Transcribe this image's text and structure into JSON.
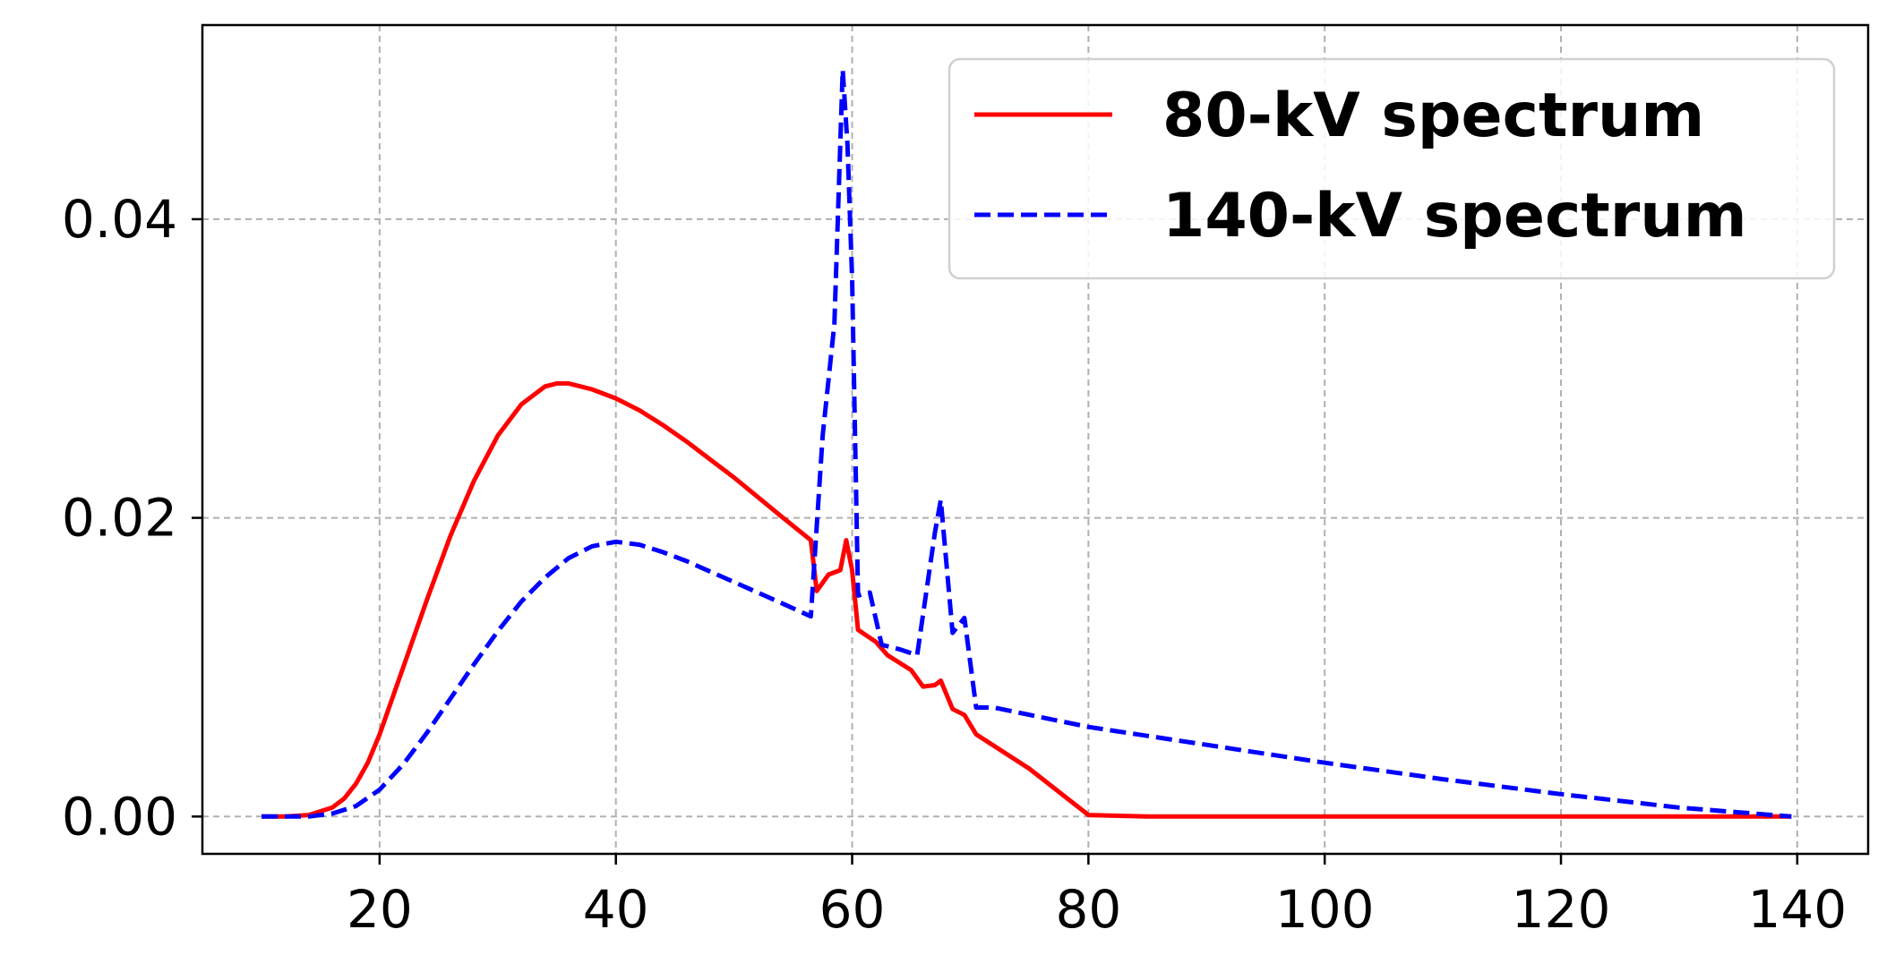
{
  "chart_data": {
    "type": "line",
    "title": "",
    "xlabel": "",
    "ylabel": "",
    "xlim": [
      5,
      146
    ],
    "ylim": [
      -0.0025,
      0.053
    ],
    "x_ticks": [
      20,
      40,
      60,
      80,
      100,
      120,
      140
    ],
    "y_ticks": [
      0.0,
      0.02,
      0.04
    ],
    "x_tick_labels": [
      "20",
      "40",
      "60",
      "80",
      "100",
      "120",
      "140"
    ],
    "y_tick_labels": [
      "0.00",
      "0.02",
      "0.04"
    ],
    "grid": true,
    "legend_position": "top-right",
    "series": [
      {
        "name": "80-kV spectrum",
        "color": "#ff0000",
        "linestyle": "solid",
        "points": [
          [
            10,
            0.0
          ],
          [
            12,
            0.0
          ],
          [
            14,
            0.0001
          ],
          [
            16,
            0.0006
          ],
          [
            17,
            0.0012
          ],
          [
            18,
            0.0022
          ],
          [
            19,
            0.0036
          ],
          [
            20,
            0.0055
          ],
          [
            22,
            0.01
          ],
          [
            24,
            0.0145
          ],
          [
            26,
            0.0188
          ],
          [
            28,
            0.0225
          ],
          [
            30,
            0.0255
          ],
          [
            32,
            0.0276
          ],
          [
            34,
            0.0288
          ],
          [
            35,
            0.029
          ],
          [
            36,
            0.029
          ],
          [
            38,
            0.0286
          ],
          [
            40,
            0.028
          ],
          [
            42,
            0.0272
          ],
          [
            44,
            0.0262
          ],
          [
            46,
            0.0251
          ],
          [
            48,
            0.0239
          ],
          [
            50,
            0.0227
          ],
          [
            52,
            0.0214
          ],
          [
            54,
            0.0201
          ],
          [
            56.5,
            0.0185
          ],
          [
            57,
            0.0151
          ],
          [
            58,
            0.0162
          ],
          [
            59,
            0.0165
          ],
          [
            59.5,
            0.0185
          ],
          [
            60,
            0.0165
          ],
          [
            60.5,
            0.0125
          ],
          [
            62,
            0.0117
          ],
          [
            63,
            0.0108
          ],
          [
            65,
            0.0098
          ],
          [
            66,
            0.0087
          ],
          [
            67,
            0.0088
          ],
          [
            67.5,
            0.0091
          ],
          [
            68.5,
            0.0072
          ],
          [
            69.5,
            0.0068
          ],
          [
            70.5,
            0.0055
          ],
          [
            75,
            0.0032
          ],
          [
            80,
            0.0001
          ],
          [
            85,
            0.0
          ],
          [
            100,
            0.0
          ],
          [
            120,
            0.0
          ],
          [
            139.5,
            0.0
          ]
        ]
      },
      {
        "name": "140-kV spectrum",
        "color": "#0000ff",
        "linestyle": "dashed",
        "points": [
          [
            10,
            0.0
          ],
          [
            12,
            0.0
          ],
          [
            14,
            0.0
          ],
          [
            16,
            0.0002
          ],
          [
            18,
            0.0007
          ],
          [
            20,
            0.0018
          ],
          [
            22,
            0.0035
          ],
          [
            24,
            0.0056
          ],
          [
            26,
            0.0079
          ],
          [
            28,
            0.0102
          ],
          [
            30,
            0.0124
          ],
          [
            32,
            0.0144
          ],
          [
            34,
            0.016
          ],
          [
            36,
            0.0173
          ],
          [
            38,
            0.0181
          ],
          [
            40,
            0.0184
          ],
          [
            42,
            0.0182
          ],
          [
            44,
            0.0177
          ],
          [
            46,
            0.0171
          ],
          [
            48,
            0.0164
          ],
          [
            50,
            0.0157
          ],
          [
            52,
            0.015
          ],
          [
            54,
            0.0143
          ],
          [
            56.5,
            0.0134
          ],
          [
            57.5,
            0.0255
          ],
          [
            58.5,
            0.033
          ],
          [
            59.2,
            0.05
          ],
          [
            59.6,
            0.045
          ],
          [
            60,
            0.036
          ],
          [
            60.5,
            0.0148
          ],
          [
            61.5,
            0.015
          ],
          [
            62.5,
            0.0115
          ],
          [
            64,
            0.0112
          ],
          [
            65.5,
            0.0108
          ],
          [
            67,
            0.019
          ],
          [
            67.5,
            0.0212
          ],
          [
            68.5,
            0.0123
          ],
          [
            69.5,
            0.0133
          ],
          [
            70.5,
            0.0073
          ],
          [
            72,
            0.0073
          ],
          [
            80,
            0.006
          ],
          [
            90,
            0.0048
          ],
          [
            100,
            0.0036
          ],
          [
            110,
            0.0025
          ],
          [
            120,
            0.0015
          ],
          [
            130,
            0.0006
          ],
          [
            139.5,
            0.0
          ]
        ]
      }
    ]
  }
}
